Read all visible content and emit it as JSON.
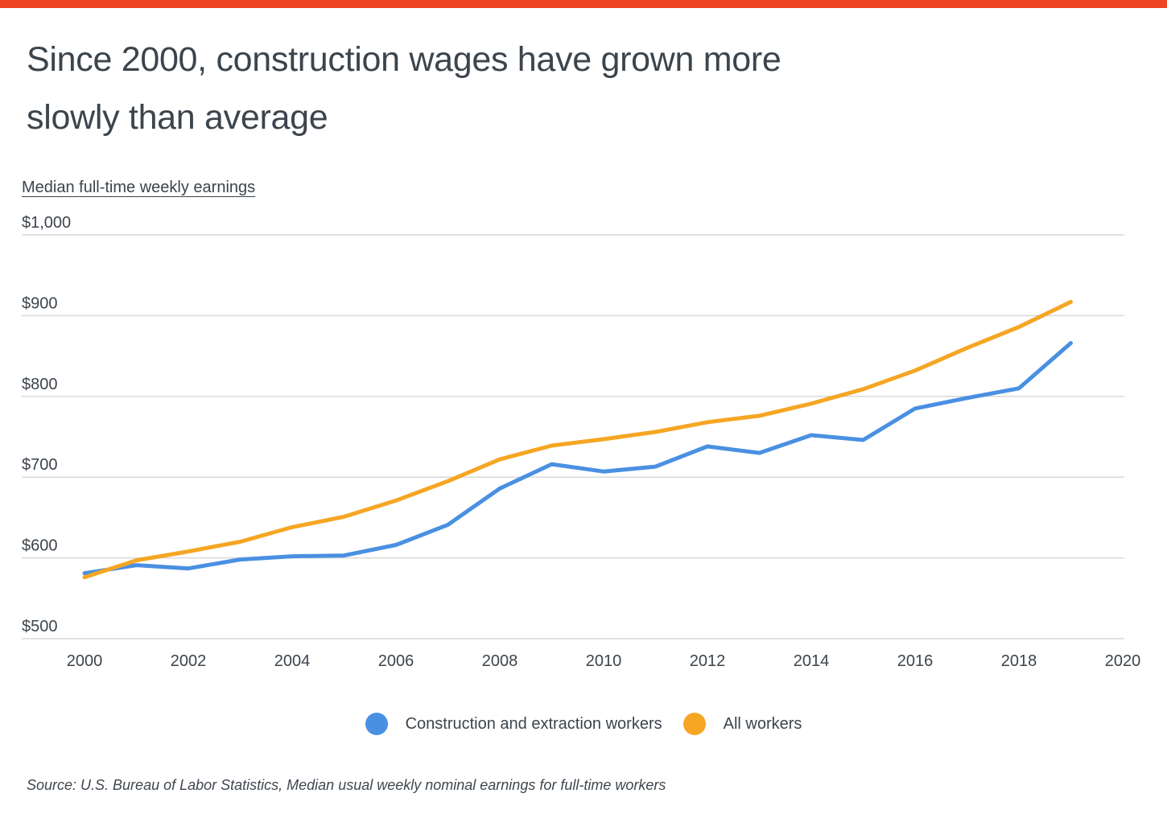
{
  "theme": {
    "top_bar_color": "#ee4424",
    "text_color": "#3c444c",
    "grid_color": "#d9d9d9",
    "background": "#ffffff"
  },
  "header": {
    "title_lines": [
      "Since 2000, construction wages have grown more",
      "slowly than average"
    ],
    "title_full": "Since 2000, construction wages have grown more slowly than average"
  },
  "chart_data": {
    "type": "line",
    "title": "Since 2000, construction wages have grown more slowly than average",
    "ylabel": "Median full-time weekly earnings",
    "xlabel": "",
    "xlim": [
      2000,
      2020
    ],
    "ylim": [
      500,
      1000
    ],
    "grid": true,
    "legend_position": "bottom",
    "x": [
      2000,
      2001,
      2002,
      2003,
      2004,
      2005,
      2006,
      2007,
      2008,
      2009,
      2010,
      2011,
      2012,
      2013,
      2014,
      2015,
      2016,
      2017,
      2018,
      2019
    ],
    "series": [
      {
        "name": "Construction and extraction workers",
        "color": "#4a90e2",
        "values": [
          581,
          591,
          587,
          598,
          602,
          603,
          616,
          641,
          686,
          716,
          707,
          713,
          738,
          730,
          752,
          746,
          785,
          798,
          810,
          866
        ]
      },
      {
        "name": "All workers",
        "color": "#f5a623",
        "values": [
          576,
          597,
          608,
          620,
          638,
          651,
          671,
          695,
          722,
          739,
          747,
          756,
          768,
          776,
          791,
          809,
          832,
          860,
          886,
          917
        ]
      }
    ],
    "xticks": [
      2000,
      2002,
      2004,
      2006,
      2008,
      2010,
      2012,
      2014,
      2016,
      2018,
      2020
    ],
    "ytick_values": [
      500,
      600,
      700,
      800,
      900,
      1000
    ],
    "ytick_labels": [
      "$500",
      "$600",
      "$700",
      "$800",
      "$900",
      "$1,000"
    ]
  },
  "footer": {
    "source": "Source: U.S. Bureau of Labor Statistics, Median usual weekly nominal earnings for full-time workers"
  }
}
